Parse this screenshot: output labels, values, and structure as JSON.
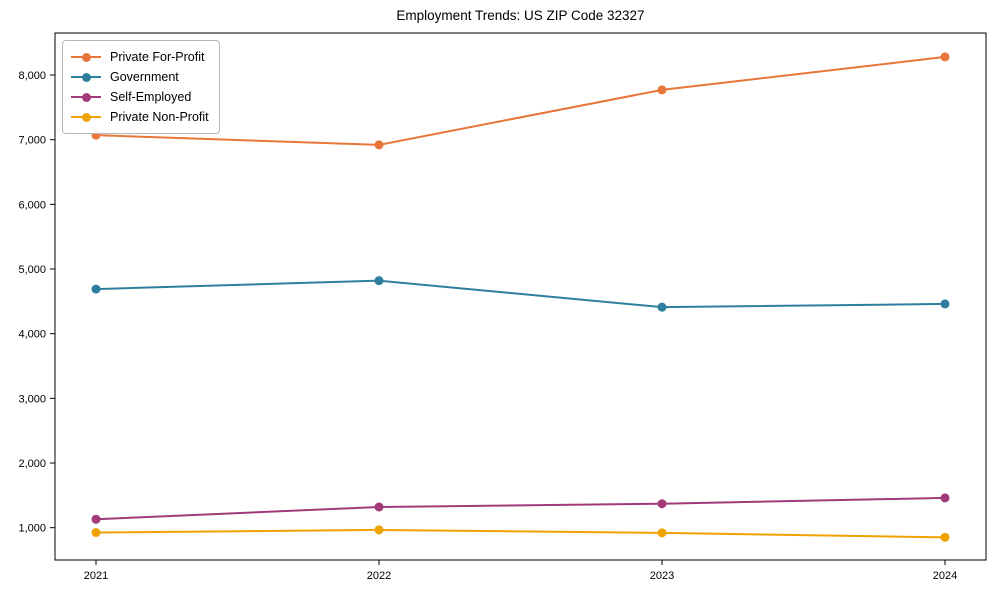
{
  "chart_data": {
    "type": "line",
    "title": "Employment Trends: US ZIP Code 32327",
    "categories": [
      "2021",
      "2022",
      "2023",
      "2024"
    ],
    "series": [
      {
        "name": "Private For-Profit",
        "color": "#e8763b",
        "values": [
          7070,
          6920,
          7770,
          8280
        ]
      },
      {
        "name": "Government",
        "color": "#2e7f9e",
        "values": [
          4690,
          4820,
          4410,
          4460
        ]
      },
      {
        "name": "Self-Employed",
        "color": "#a23a7a",
        "values": [
          1130,
          1320,
          1370,
          1460
        ]
      },
      {
        "name": "Private Non-Profit",
        "color": "#f0a202",
        "values": [
          925,
          965,
          920,
          850
        ]
      }
    ],
    "ylim": [
      500,
      8650
    ],
    "y_ticks": [
      1000,
      2000,
      3000,
      4000,
      5000,
      6000,
      7000,
      8000
    ],
    "xlabel": "",
    "ylabel": "",
    "grid": false,
    "legend_position": "upper-left",
    "marker": "circle"
  }
}
